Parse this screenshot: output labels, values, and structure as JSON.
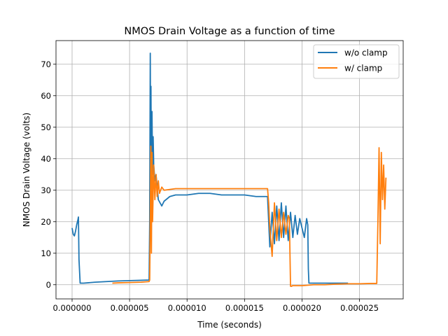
{
  "chart_data": {
    "type": "line",
    "title": "NMOS Drain Voltage as a function of time",
    "xlabel": "Time (seconds)",
    "ylabel": "NMOS Drain Voltage (volts)",
    "xlim": [
      -1.4e-06,
      2.88e-05
    ],
    "ylim": [
      -4.5,
      77.5
    ],
    "x_ticks": [
      0,
      5e-06,
      1e-05,
      1.5e-05,
      2e-05,
      2.5e-05
    ],
    "x_tick_labels": [
      "0.000000",
      "0.000005",
      "0.000010",
      "0.000015",
      "0.000020",
      "0.000025"
    ],
    "y_ticks": [
      0,
      10,
      20,
      30,
      40,
      50,
      60,
      70
    ],
    "y_tick_labels": [
      "0",
      "10",
      "20",
      "30",
      "40",
      "50",
      "60",
      "70"
    ],
    "grid": true,
    "legend_position": "top-right",
    "series": [
      {
        "name": "w/o clamp",
        "color": "#1f77b4",
        "x": [
          0,
          1e-07,
          2e-07,
          3e-07,
          4e-07,
          5e-07,
          5.5e-07,
          6e-07,
          7e-07,
          1e-06,
          2e-06,
          3e-06,
          4e-06,
          5e-06,
          6e-06,
          6.7e-06,
          6.75e-06,
          6.8e-06,
          6.83e-06,
          6.86e-06,
          6.9e-06,
          6.95e-06,
          7e-06,
          7.05e-06,
          7.1e-06,
          7.2e-06,
          7.3e-06,
          7.5e-06,
          7.8e-06,
          8e-06,
          8.5e-06,
          9e-06,
          1e-05,
          1.1e-05,
          1.2e-05,
          1.3e-05,
          1.4e-05,
          1.5e-05,
          1.6e-05,
          1.7e-05,
          1.71e-05,
          1.72e-05,
          1.74e-05,
          1.76e-05,
          1.78e-05,
          1.8e-05,
          1.82e-05,
          1.84e-05,
          1.86e-05,
          1.88e-05,
          1.9e-05,
          1.92e-05,
          1.94e-05,
          1.96e-05,
          1.98e-05,
          2e-05,
          2.02e-05,
          2.04e-05,
          2.05e-05,
          2.055e-05,
          2.06e-05,
          2.1e-05,
          2.2e-05,
          2.3e-05,
          2.4e-05
        ],
        "y": [
          18,
          16,
          15.5,
          17,
          19,
          20.5,
          21.5,
          8,
          0.5,
          0.5,
          0.8,
          1,
          1.2,
          1.3,
          1.4,
          1.5,
          20,
          73.5,
          40,
          63,
          30,
          55,
          35,
          47,
          38,
          33,
          35,
          27,
          25,
          26.5,
          28,
          28.5,
          28.5,
          29,
          29,
          28.5,
          28.5,
          28.5,
          28,
          28,
          20,
          12,
          23,
          13,
          25,
          14,
          26,
          15,
          25,
          14,
          23,
          15,
          22,
          16,
          21,
          18,
          15,
          21,
          19,
          5,
          0.5,
          0.5,
          0.5,
          0.5,
          0.5
        ]
      },
      {
        "name": "w/ clamp",
        "color": "#ff7f0e",
        "x": [
          3.5e-06,
          4e-06,
          5e-06,
          6e-06,
          6.7e-06,
          6.75e-06,
          6.8e-06,
          6.85e-06,
          6.9e-06,
          6.95e-06,
          7e-06,
          7.1e-06,
          7.2e-06,
          7.3e-06,
          7.4e-06,
          7.5e-06,
          7.6e-06,
          7.8e-06,
          8e-06,
          9e-06,
          1e-05,
          1.1e-05,
          1.2e-05,
          1.3e-05,
          1.4e-05,
          1.5e-05,
          1.6e-05,
          1.7e-05,
          1.71e-05,
          1.72e-05,
          1.74e-05,
          1.76e-05,
          1.78e-05,
          1.8e-05,
          1.82e-05,
          1.84e-05,
          1.86e-05,
          1.88e-05,
          1.89e-05,
          1.895e-05,
          1.9e-05,
          1.91e-05,
          1.915e-05,
          2e-05,
          2.1e-05,
          2.2e-05,
          2.3e-05,
          2.4e-05,
          2.5e-05,
          2.6e-05,
          2.65e-05,
          2.66e-05,
          2.67e-05,
          2.68e-05,
          2.69e-05,
          2.7e-05,
          2.71e-05,
          2.72e-05,
          2.73e-05
        ],
        "y": [
          0.5,
          0.6,
          0.7,
          0.8,
          1,
          1.5,
          20,
          44,
          10,
          42,
          20,
          38,
          27,
          35,
          28,
          33,
          29,
          31,
          30,
          30.5,
          30.5,
          30.5,
          30.5,
          30.5,
          30.5,
          30.5,
          30.5,
          30.5,
          26,
          18,
          9,
          26,
          14,
          24,
          15,
          23,
          16,
          22,
          21,
          10,
          -0.5,
          -0.5,
          -0.3,
          -0.3,
          0,
          0,
          0.2,
          0.3,
          0.3,
          0.4,
          0.4,
          20,
          43.5,
          13,
          42,
          27,
          38,
          24,
          34
        ]
      }
    ]
  }
}
